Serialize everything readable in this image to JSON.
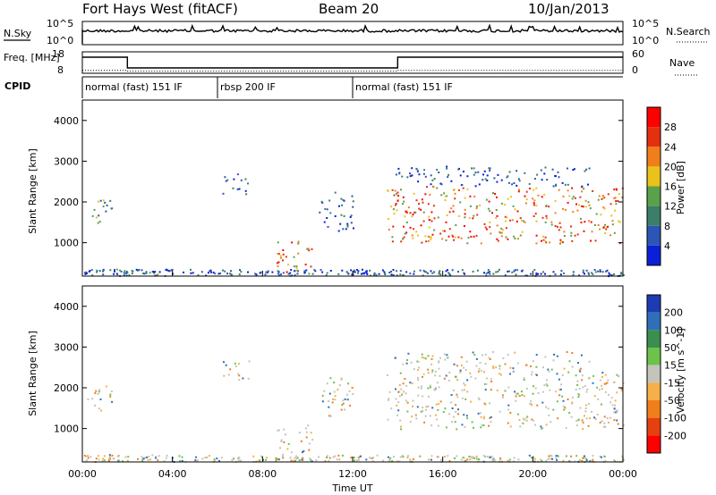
{
  "chart_data": [
    {
      "type": "line",
      "header": {
        "station": "Fort Hays West (fitACF)",
        "beam": "Beam 20",
        "date": "10/Jan/2013"
      },
      "left_label": "N.Sky",
      "right_label": "N.Search",
      "left_ticks": [
        "10^5",
        "10^0"
      ],
      "right_ticks": [
        "10^5",
        "10^0"
      ],
      "note": "noise level traces (log scale)"
    },
    {
      "type": "line",
      "left_label": "Freq. [MHz]",
      "right_label": "Nave",
      "left_ticks": [
        "18",
        "8"
      ],
      "right_ticks": [
        "60",
        "0"
      ],
      "freq_series": {
        "x": [
          0,
          2,
          2,
          14,
          14,
          24
        ],
        "y": [
          15.5,
          15.5,
          10.5,
          10.5,
          15.5,
          15.5
        ]
      },
      "nave_series": {
        "x": [
          0,
          2,
          2,
          14,
          14,
          24
        ],
        "y": [
          8,
          8,
          6,
          6,
          8,
          8
        ]
      }
    },
    {
      "type": "table",
      "label": "CPID",
      "segments": [
        {
          "start": 0,
          "end": 6,
          "text": "normal (fast) 151 IF"
        },
        {
          "start": 6,
          "end": 12,
          "text": "rbsp 200 IF"
        },
        {
          "start": 12,
          "end": 24,
          "text": "normal (fast) 151 IF"
        }
      ]
    },
    {
      "type": "heatmap",
      "ylabel": "Slant Range [km]",
      "yticks": [
        1000,
        2000,
        3000,
        4000
      ],
      "ylim": [
        180,
        4500
      ],
      "xlim": [
        0,
        24
      ],
      "colorbar": {
        "label": "Power [dB]",
        "ticks": [
          4,
          8,
          12,
          16,
          20,
          24,
          28
        ],
        "colors": [
          "#0b1fd6",
          "#2c55b5",
          "#3b7e6a",
          "#5aa14a",
          "#e9c21a",
          "#f07f1b",
          "#e53010",
          "#ff0000"
        ]
      },
      "bands": [
        {
          "x0": 0.2,
          "x1": 1.3,
          "y0": 1450,
          "y1": 2100,
          "level": "mid"
        },
        {
          "x0": 0.8,
          "x1": 3.8,
          "y0": 230,
          "y1": 380,
          "level": "mid"
        },
        {
          "x0": 8.6,
          "x1": 10.2,
          "y0": 250,
          "y1": 1100,
          "level": "high"
        },
        {
          "x0": 13.5,
          "x1": 24.0,
          "y0": 1000,
          "y1": 2400,
          "level": "high"
        },
        {
          "x0": 13.8,
          "x1": 22.5,
          "y0": 2400,
          "y1": 2900,
          "level": "low"
        },
        {
          "x0": 6.2,
          "x1": 7.5,
          "y0": 2200,
          "y1": 2700,
          "level": "low"
        },
        {
          "x0": 10.5,
          "x1": 12.0,
          "y0": 1300,
          "y1": 2300,
          "level": "low"
        }
      ]
    },
    {
      "type": "heatmap",
      "ylabel": "Slant Range [km]",
      "yticks": [
        1000,
        2000,
        3000,
        4000
      ],
      "ylim": [
        180,
        4500
      ],
      "xlim": [
        0,
        24
      ],
      "xticks": [
        "00:00",
        "04:00",
        "08:00",
        "12:00",
        "16:00",
        "20:00",
        "00:00"
      ],
      "xlabel": "Time UT",
      "colorbar": {
        "label": "Velocity [m s^-1]",
        "ticks": [
          200,
          100,
          50,
          15,
          -15,
          -50,
          -100,
          -200
        ],
        "colors": [
          "#1f3bb3",
          "#2f6fb9",
          "#3b8e4f",
          "#6cc24a",
          "#c4c4bc",
          "#f5b04a",
          "#f07f1b",
          "#e54010",
          "#ff0000"
        ]
      }
    }
  ]
}
